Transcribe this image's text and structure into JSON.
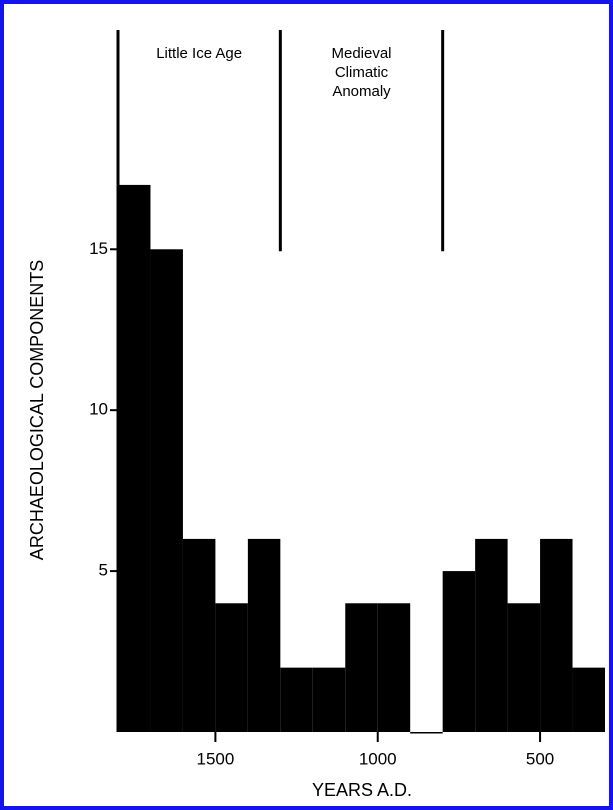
{
  "chart_data": {
    "type": "histogram",
    "x_label": "YEARS A.D.",
    "y_label": "ARCHAEOLOGICAL COMPONENTS",
    "bins": [
      1800,
      1700,
      1600,
      1500,
      1400,
      1300,
      1200,
      1100,
      1000,
      900,
      800,
      700,
      600,
      500,
      400,
      300
    ],
    "values": [
      17,
      15,
      6,
      4,
      6,
      2,
      2,
      4,
      4,
      0,
      5,
      6,
      4,
      6,
      2
    ],
    "color": "#000000",
    "xlim": [
      1800,
      300
    ],
    "xticks": [
      1500,
      1000,
      500
    ],
    "ylim": [
      0,
      22
    ],
    "yticks": [
      5,
      10,
      15
    ],
    "period_lines": [
      1800,
      1300,
      800
    ],
    "annotations": [
      {
        "lines": [
          "Little Ice Age"
        ]
      },
      {
        "lines": [
          "Medieval",
          "Climatic",
          "Anomaly"
        ]
      }
    ]
  }
}
